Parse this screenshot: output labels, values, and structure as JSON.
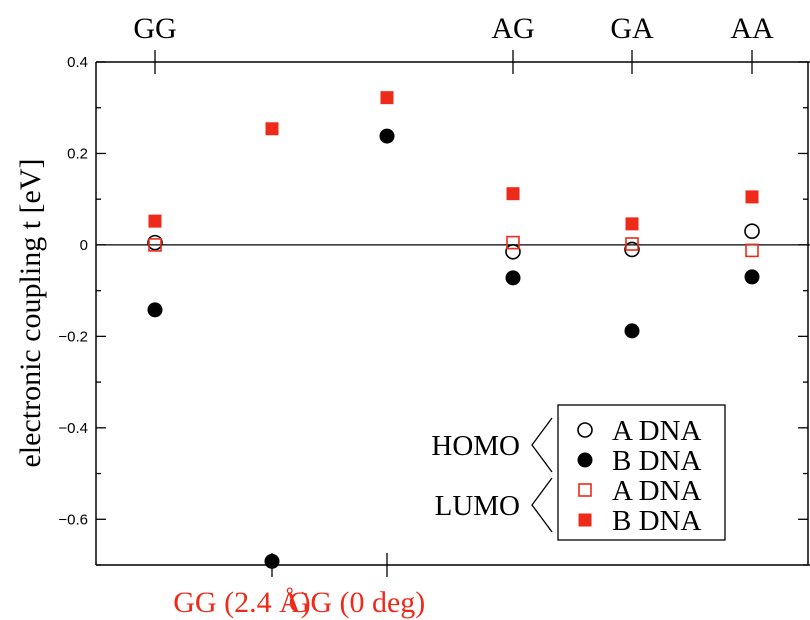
{
  "chart_data": {
    "type": "scatter",
    "ylabel": "electronic coupling  t  [eV]",
    "ylim": [
      -0.7,
      0.4
    ],
    "yticks": [
      0.4,
      0.2,
      0,
      -0.2,
      -0.4,
      -0.6
    ],
    "ytick_labels": [
      "0.4",
      "0.2",
      "0",
      "−0.2",
      "−0.4",
      "−0.6"
    ],
    "categories": [
      {
        "label": "GG",
        "axis": "top"
      },
      {
        "label": "GG (2.4 Å)",
        "axis": "bottom"
      },
      {
        "label": "GG (0 deg)",
        "axis": "bottom"
      },
      {
        "label": "AG",
        "axis": "top"
      },
      {
        "label": "GA",
        "axis": "top"
      },
      {
        "label": "AA",
        "axis": "top"
      }
    ],
    "series": [
      {
        "name": "A DNA",
        "group": "HOMO",
        "marker": "circle-open",
        "color": "#000000",
        "values": [
          0.005,
          null,
          null,
          -0.015,
          -0.01,
          0.03
        ]
      },
      {
        "name": "B DNA",
        "group": "HOMO",
        "marker": "circle-filled",
        "color": "#000000",
        "values": [
          -0.142,
          -0.692,
          0.238,
          -0.072,
          -0.188,
          -0.07
        ]
      },
      {
        "name": "A DNA",
        "group": "LUMO",
        "marker": "square-open",
        "color": "#ee2a1a",
        "values": [
          0.0,
          null,
          null,
          0.005,
          0.002,
          -0.012
        ]
      },
      {
        "name": "B DNA",
        "group": "LUMO",
        "marker": "square-filled",
        "color": "#ee2a1a",
        "values": [
          0.052,
          0.254,
          0.322,
          0.112,
          0.046,
          0.105
        ]
      }
    ],
    "zero_line": true,
    "grid": false,
    "legend_position": "bottom-right",
    "legend": {
      "groups": [
        {
          "label": "HOMO",
          "entries": [
            "A DNA",
            "B DNA"
          ]
        },
        {
          "label": "LUMO",
          "entries": [
            "A DNA",
            "B DNA"
          ]
        }
      ]
    }
  }
}
